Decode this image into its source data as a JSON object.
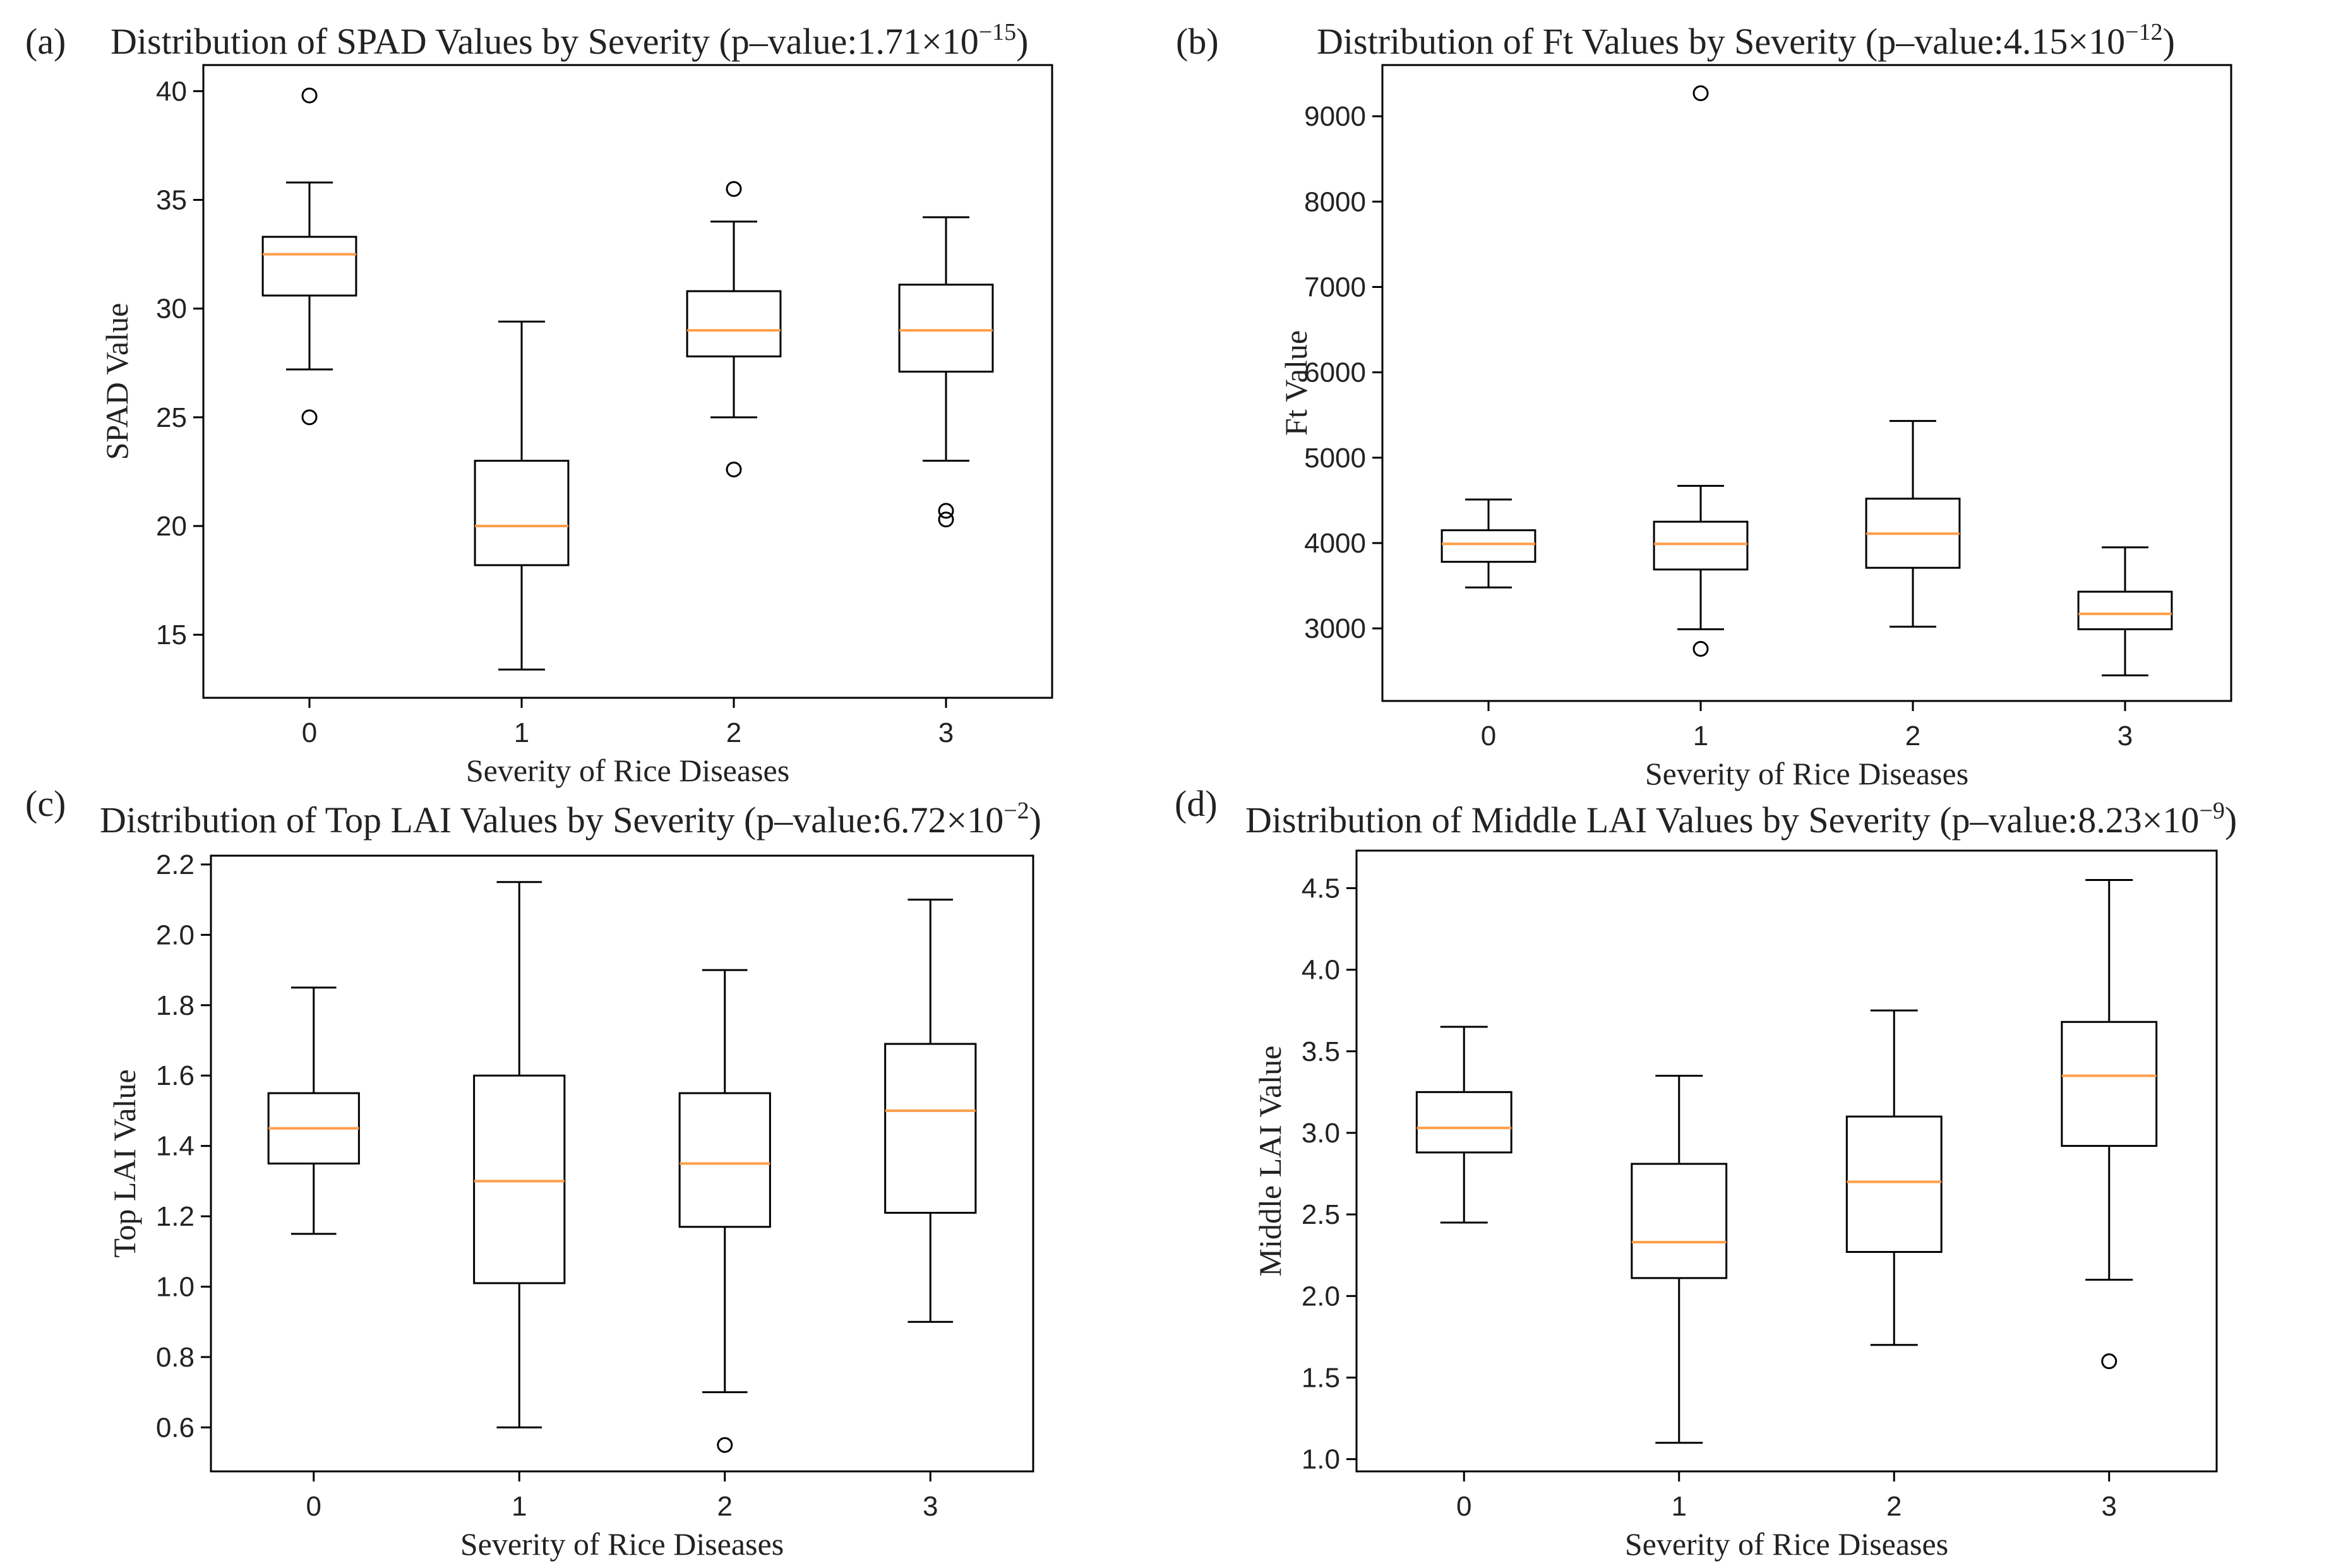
{
  "figure": {
    "background": "#ffffff",
    "median_color": "#ff9e4a",
    "box_color": "#000000"
  },
  "chart_data": [
    {
      "type": "boxplot",
      "panel_label": "(a)",
      "title": "Distribution of SPAD Values by Severity (p–value:1.71×10",
      "title_exponent": "−15",
      "title_suffix": ")",
      "xlabel": "Severity of Rice Diseases",
      "ylabel": "SPAD Value",
      "ylim": [
        12.1,
        41.2
      ],
      "yticks": [
        15,
        20,
        25,
        30,
        35,
        40
      ],
      "ytick_labels": [
        "15",
        "20",
        "25",
        "30",
        "35",
        "40"
      ],
      "categories": [
        "0",
        "1",
        "2",
        "3"
      ],
      "boxes": [
        {
          "category": "0",
          "whisker_low": 27.2,
          "q1": 30.6,
          "median": 32.5,
          "q3": 33.3,
          "whisker_high": 35.8,
          "fliers": [
            39.8,
            25.0
          ]
        },
        {
          "category": "1",
          "whisker_low": 13.4,
          "q1": 18.2,
          "median": 20.0,
          "q3": 23.0,
          "whisker_high": 29.4,
          "fliers": []
        },
        {
          "category": "2",
          "whisker_low": 25.0,
          "q1": 27.8,
          "median": 29.0,
          "q3": 30.8,
          "whisker_high": 34.0,
          "fliers": [
            35.5,
            22.6
          ]
        },
        {
          "category": "3",
          "whisker_low": 23.0,
          "q1": 27.1,
          "median": 29.0,
          "q3": 31.1,
          "whisker_high": 34.2,
          "fliers": [
            20.7,
            20.3
          ]
        }
      ]
    },
    {
      "type": "boxplot",
      "panel_label": "(b)",
      "title": "Distribution of Ft Values by Severity (p–value:4.15×10",
      "title_exponent": "−12",
      "title_suffix": ")",
      "xlabel": "Severity of Rice Diseases",
      "ylabel": "Ft Value",
      "ylim": [
        2150,
        9600
      ],
      "yticks": [
        3000,
        4000,
        5000,
        6000,
        7000,
        8000,
        9000
      ],
      "ytick_labels": [
        "3000",
        "4000",
        "5000",
        "6000",
        "7000",
        "8000",
        "9000"
      ],
      "categories": [
        "0",
        "1",
        "2",
        "3"
      ],
      "boxes": [
        {
          "category": "0",
          "whisker_low": 3480,
          "q1": 3780,
          "median": 3990,
          "q3": 4150,
          "whisker_high": 4510,
          "fliers": []
        },
        {
          "category": "1",
          "whisker_low": 2990,
          "q1": 3690,
          "median": 3990,
          "q3": 4250,
          "whisker_high": 4670,
          "fliers": [
            9270,
            2760
          ]
        },
        {
          "category": "2",
          "whisker_low": 3020,
          "q1": 3710,
          "median": 4110,
          "q3": 4520,
          "whisker_high": 5430,
          "fliers": []
        },
        {
          "category": "3",
          "whisker_low": 2450,
          "q1": 2990,
          "median": 3170,
          "q3": 3430,
          "whisker_high": 3950,
          "fliers": []
        }
      ]
    },
    {
      "type": "boxplot",
      "panel_label": "(c)",
      "title": "Distribution of Top LAI Values by Severity (p–value:6.72×10",
      "title_exponent": "−2",
      "title_suffix": ")",
      "xlabel": "Severity of Rice Diseases",
      "ylabel": "Top LAI Value",
      "ylim": [
        0.475,
        2.225
      ],
      "yticks": [
        0.6,
        0.8,
        1.0,
        1.2,
        1.4,
        1.6,
        1.8,
        2.0,
        2.2
      ],
      "ytick_labels": [
        "0.6",
        "0.8",
        "1.0",
        "1.2",
        "1.4",
        "1.6",
        "1.8",
        "2.0",
        "2.2"
      ],
      "categories": [
        "0",
        "1",
        "2",
        "3"
      ],
      "boxes": [
        {
          "category": "0",
          "whisker_low": 1.15,
          "q1": 1.35,
          "median": 1.45,
          "q3": 1.55,
          "whisker_high": 1.85,
          "fliers": []
        },
        {
          "category": "1",
          "whisker_low": 0.6,
          "q1": 1.01,
          "median": 1.3,
          "q3": 1.6,
          "whisker_high": 2.15,
          "fliers": []
        },
        {
          "category": "2",
          "whisker_low": 0.7,
          "q1": 1.17,
          "median": 1.35,
          "q3": 1.55,
          "whisker_high": 1.9,
          "fliers": [
            0.55
          ]
        },
        {
          "category": "3",
          "whisker_low": 0.9,
          "q1": 1.21,
          "median": 1.5,
          "q3": 1.69,
          "whisker_high": 2.1,
          "fliers": []
        }
      ]
    },
    {
      "type": "boxplot",
      "panel_label": "(d)",
      "title": "Distribution of Middle LAI Values by Severity (p–value:8.23×10",
      "title_exponent": "−9",
      "title_suffix": ")",
      "xlabel": "Severity of Rice Diseases",
      "ylabel": "Middle LAI Value",
      "ylim": [
        0.925,
        4.73
      ],
      "yticks": [
        1.0,
        1.5,
        2.0,
        2.5,
        3.0,
        3.5,
        4.0,
        4.5
      ],
      "ytick_labels": [
        "1.0",
        "1.5",
        "2.0",
        "2.5",
        "3.0",
        "3.5",
        "4.0",
        "4.5"
      ],
      "categories": [
        "0",
        "1",
        "2",
        "3"
      ],
      "boxes": [
        {
          "category": "0",
          "whisker_low": 2.45,
          "q1": 2.88,
          "median": 3.03,
          "q3": 3.25,
          "whisker_high": 3.65,
          "fliers": []
        },
        {
          "category": "1",
          "whisker_low": 1.1,
          "q1": 2.11,
          "median": 2.33,
          "q3": 2.81,
          "whisker_high": 3.35,
          "fliers": []
        },
        {
          "category": "2",
          "whisker_low": 1.7,
          "q1": 2.27,
          "median": 2.7,
          "q3": 3.1,
          "whisker_high": 3.75,
          "fliers": []
        },
        {
          "category": "3",
          "whisker_low": 2.1,
          "q1": 2.92,
          "median": 3.35,
          "q3": 3.68,
          "whisker_high": 4.55,
          "fliers": [
            1.6
          ]
        }
      ]
    }
  ]
}
